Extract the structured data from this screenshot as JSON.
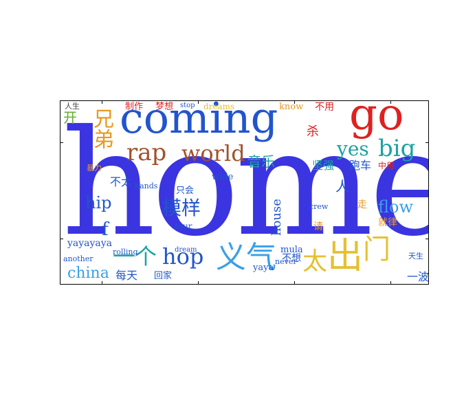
{
  "wordcloud": {
    "words": {
      "home": "home",
      "coming": "coming",
      "go": "go",
      "big": "big",
      "rap": "rap",
      "world": "world",
      "yes": "yes",
      "hop": "hop",
      "hip": "hip",
      "flow": "flow",
      "house": "house",
      "china": "china",
      "yayayaya": "yayayaya",
      "yaya": "yaya",
      "mula": "mula",
      "tour": "tour",
      "wide": "wide",
      "rolling": "rolling",
      "another": "another",
      "never": "never",
      "dream": "dream",
      "dreams": "dreams",
      "know": "know",
      "hands": "hands",
      "stop": "stop",
      "crew": "crew",
      "f": "f",
      "cn_kaifang": "开",
      "cn_xiongdi": "兄弟",
      "cn_muyang": "模样",
      "cn_yinyue": "音乐",
      "cn_yige": "一个",
      "cn_yiqi": "义气",
      "cn_chu": "出",
      "cn_men": "门",
      "cn_tai": "太",
      "cn_ren": "人",
      "cn_jianqiang": "坚强",
      "cn_paoche": "跑车",
      "cn_bubu": "不太",
      "cn_meitian": "每天",
      "cn_huijia": "回家",
      "cn_zhihui": "只会",
      "cn_yibo": "一波",
      "cn_sha": "杀",
      "cn_bu_yong": "不用",
      "cn_zhizuo": "制作",
      "cn_mengxiang": "梦想",
      "cn_buxiang": "不想",
      "cn_jiu_lv": "就律",
      "cn_zhongyong": "中用",
      "cn_ren_sheng": "人生",
      "cn_zou": "走",
      "cn_qing": "请",
      "cn_yuantian": "天生",
      "cn_baoli": "暴力"
    },
    "colors": {
      "home": "#3a35e0",
      "blue": "#2255cc",
      "red": "#e02020",
      "teal": "#1aa3a3",
      "orange": "#e89a20",
      "gold": "#e6c030",
      "sky": "#3aa0e6",
      "green": "#5fae2e",
      "gray": "#444444",
      "brown": "#a0522d"
    }
  }
}
